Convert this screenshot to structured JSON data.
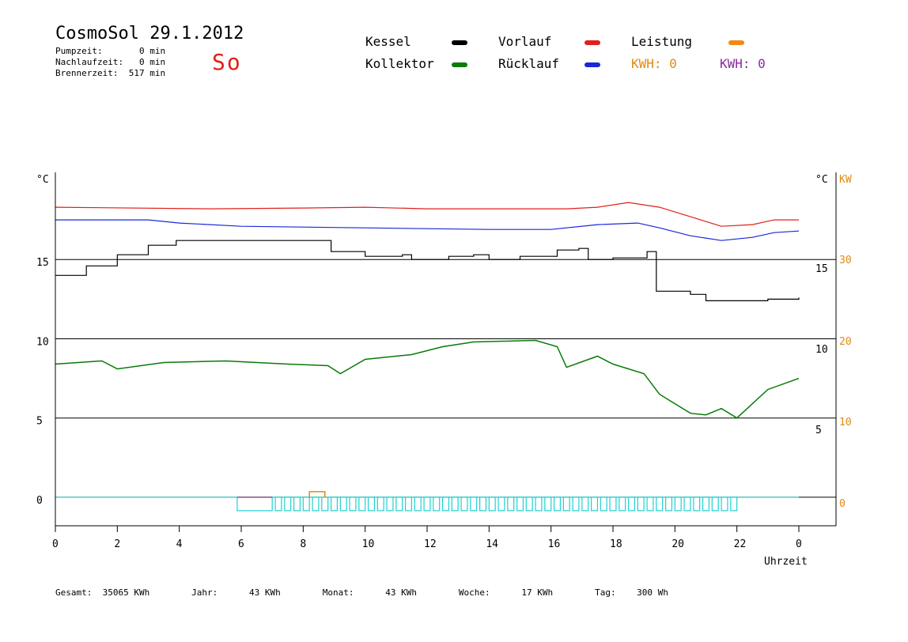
{
  "header": {
    "title": "CosmoSol 29.1.2012",
    "day": "So",
    "stats": [
      "Pumpzeit:       0 min",
      "Nachlaufzeit:   0 min",
      "Brennerzeit:  517 min"
    ]
  },
  "legend": {
    "items": [
      {
        "label": "Kessel",
        "color": "#000000"
      },
      {
        "label": "Kollektor",
        "color": "#0a7a0a"
      },
      {
        "label": "Vorlauf",
        "color": "#e0201a"
      },
      {
        "label": "Rücklauf",
        "color": "#1a28d8"
      },
      {
        "label": "Leistung",
        "color": "#f08a14"
      }
    ],
    "kwh_orange": "KWH: 0",
    "kwh_purple": "KWH: 0",
    "kwh_orange_color": "#e08a14",
    "kwh_purple_color": "#8a2aa0"
  },
  "footer": {
    "text": "Gesamt:  35065 KWh        Jahr:      43 KWh        Monat:      43 KWh        Woche:      17 KWh        Tag:    300 Wh"
  },
  "chart_data": {
    "type": "line",
    "xlabel": "Uhrzeit",
    "x_ticks": [
      "0",
      "2",
      "4",
      "6",
      "8",
      "10",
      "12",
      "14",
      "16",
      "18",
      "20",
      "22",
      "0"
    ],
    "xlim": [
      0,
      24
    ],
    "left_axis": {
      "unit": "°C",
      "ticks": [
        "15",
        "10",
        "5",
        "0"
      ],
      "ylim": [
        -1.8,
        20.5
      ]
    },
    "right_axis_temp": {
      "unit": "°C",
      "ticks": [
        "15",
        "10",
        "5"
      ]
    },
    "right_axis_power": {
      "unit": "KW",
      "ticks": [
        "30",
        "20",
        "10",
        "0"
      ],
      "color": "#e08a14"
    },
    "series": [
      {
        "name": "Vorlauf",
        "color": "#e0201a",
        "points": [
          [
            0,
            18.3
          ],
          [
            5,
            18.2
          ],
          [
            8,
            18.25
          ],
          [
            10,
            18.3
          ],
          [
            12,
            18.2
          ],
          [
            14,
            18.2
          ],
          [
            16.5,
            18.2
          ],
          [
            17.5,
            18.3
          ],
          [
            18.5,
            18.6
          ],
          [
            19.5,
            18.3
          ],
          [
            20.5,
            17.7
          ],
          [
            21.5,
            17.1
          ],
          [
            22.5,
            17.2
          ],
          [
            23.2,
            17.5
          ],
          [
            24,
            17.5
          ]
        ]
      },
      {
        "name": "Rücklauf",
        "color": "#1a28d8",
        "points": [
          [
            0,
            17.5
          ],
          [
            3,
            17.5
          ],
          [
            4,
            17.3
          ],
          [
            6,
            17.1
          ],
          [
            10,
            17.0
          ],
          [
            14,
            16.9
          ],
          [
            16,
            16.9
          ],
          [
            17.5,
            17.2
          ],
          [
            18.8,
            17.3
          ],
          [
            19.5,
            17.0
          ],
          [
            20.5,
            16.5
          ],
          [
            21.5,
            16.2
          ],
          [
            22.5,
            16.4
          ],
          [
            23.2,
            16.7
          ],
          [
            24,
            16.8
          ]
        ]
      },
      {
        "name": "Kessel",
        "color": "#000000",
        "points": [
          [
            0,
            14.0
          ],
          [
            1,
            14.6
          ],
          [
            2,
            15.3
          ],
          [
            3,
            15.9
          ],
          [
            3.9,
            16.2
          ],
          [
            8.7,
            16.2
          ],
          [
            8.9,
            15.5
          ],
          [
            10,
            15.2
          ],
          [
            11.2,
            15.3
          ],
          [
            11.5,
            15.0
          ],
          [
            12.7,
            15.2
          ],
          [
            13.5,
            15.3
          ],
          [
            14,
            15.0
          ],
          [
            15,
            15.2
          ],
          [
            16.2,
            15.6
          ],
          [
            16.9,
            15.7
          ],
          [
            17.2,
            15.0
          ],
          [
            18,
            15.1
          ],
          [
            19.1,
            15.5
          ],
          [
            19.4,
            13.0
          ],
          [
            20.5,
            12.8
          ],
          [
            21,
            12.4
          ],
          [
            23,
            12.5
          ],
          [
            24,
            12.6
          ]
        ]
      },
      {
        "name": "Kollektor",
        "color": "#0a7a0a",
        "points": [
          [
            0,
            8.4
          ],
          [
            1.5,
            8.6
          ],
          [
            2,
            8.1
          ],
          [
            3.5,
            8.5
          ],
          [
            5.5,
            8.6
          ],
          [
            7.5,
            8.4
          ],
          [
            8.8,
            8.3
          ],
          [
            9.2,
            7.8
          ],
          [
            10,
            8.7
          ],
          [
            11.5,
            9.0
          ],
          [
            12.5,
            9.5
          ],
          [
            13.5,
            9.8
          ],
          [
            15.5,
            9.9
          ],
          [
            16.2,
            9.5
          ],
          [
            16.5,
            8.2
          ],
          [
            17.5,
            8.9
          ],
          [
            18,
            8.4
          ],
          [
            19,
            7.8
          ],
          [
            19.5,
            6.5
          ],
          [
            20.5,
            5.3
          ],
          [
            21,
            5.2
          ],
          [
            21.5,
            5.6
          ],
          [
            22,
            5.0
          ],
          [
            23,
            6.8
          ],
          [
            24,
            7.5
          ]
        ]
      }
    ],
    "burner": {
      "color": "#1fd1d1",
      "blocks": [
        [
          5.87,
          7.0
        ],
        [
          7.1,
          7.3
        ],
        [
          7.4,
          7.6
        ],
        [
          7.7,
          7.9
        ],
        [
          8.0,
          8.2
        ],
        [
          8.3,
          8.5
        ],
        [
          8.6,
          8.8
        ],
        [
          8.9,
          9.1
        ],
        [
          9.2,
          9.4
        ],
        [
          9.5,
          9.7
        ],
        [
          9.8,
          10.0
        ],
        [
          10.1,
          10.3
        ],
        [
          10.4,
          10.6
        ],
        [
          10.7,
          10.9
        ],
        [
          11.0,
          11.2
        ],
        [
          11.3,
          11.5
        ],
        [
          11.6,
          11.8
        ],
        [
          11.9,
          12.1
        ],
        [
          12.2,
          12.4
        ],
        [
          12.5,
          12.7
        ],
        [
          12.8,
          13.0
        ],
        [
          13.1,
          13.3
        ],
        [
          13.4,
          13.6
        ],
        [
          13.7,
          13.9
        ],
        [
          14.0,
          14.2
        ],
        [
          14.3,
          14.5
        ],
        [
          14.6,
          14.8
        ],
        [
          14.9,
          15.1
        ],
        [
          15.2,
          15.4
        ],
        [
          15.5,
          15.7
        ],
        [
          15.8,
          16.0
        ],
        [
          16.1,
          16.3
        ],
        [
          16.4,
          16.6
        ],
        [
          16.7,
          16.9
        ],
        [
          17.0,
          17.2
        ],
        [
          17.3,
          17.5
        ],
        [
          17.6,
          17.8
        ],
        [
          17.9,
          18.1
        ],
        [
          18.2,
          18.4
        ],
        [
          18.5,
          18.7
        ],
        [
          18.8,
          19.0
        ],
        [
          19.1,
          19.3
        ],
        [
          19.4,
          19.6
        ],
        [
          19.7,
          19.9
        ],
        [
          20.0,
          20.2
        ],
        [
          20.3,
          20.5
        ],
        [
          20.6,
          20.8
        ],
        [
          20.9,
          21.1
        ],
        [
          21.2,
          21.4
        ],
        [
          21.5,
          21.7
        ],
        [
          21.8,
          22.0
        ]
      ]
    },
    "leistung_blip": {
      "color": "#e08a14",
      "x": [
        8.2,
        8.7
      ]
    }
  }
}
